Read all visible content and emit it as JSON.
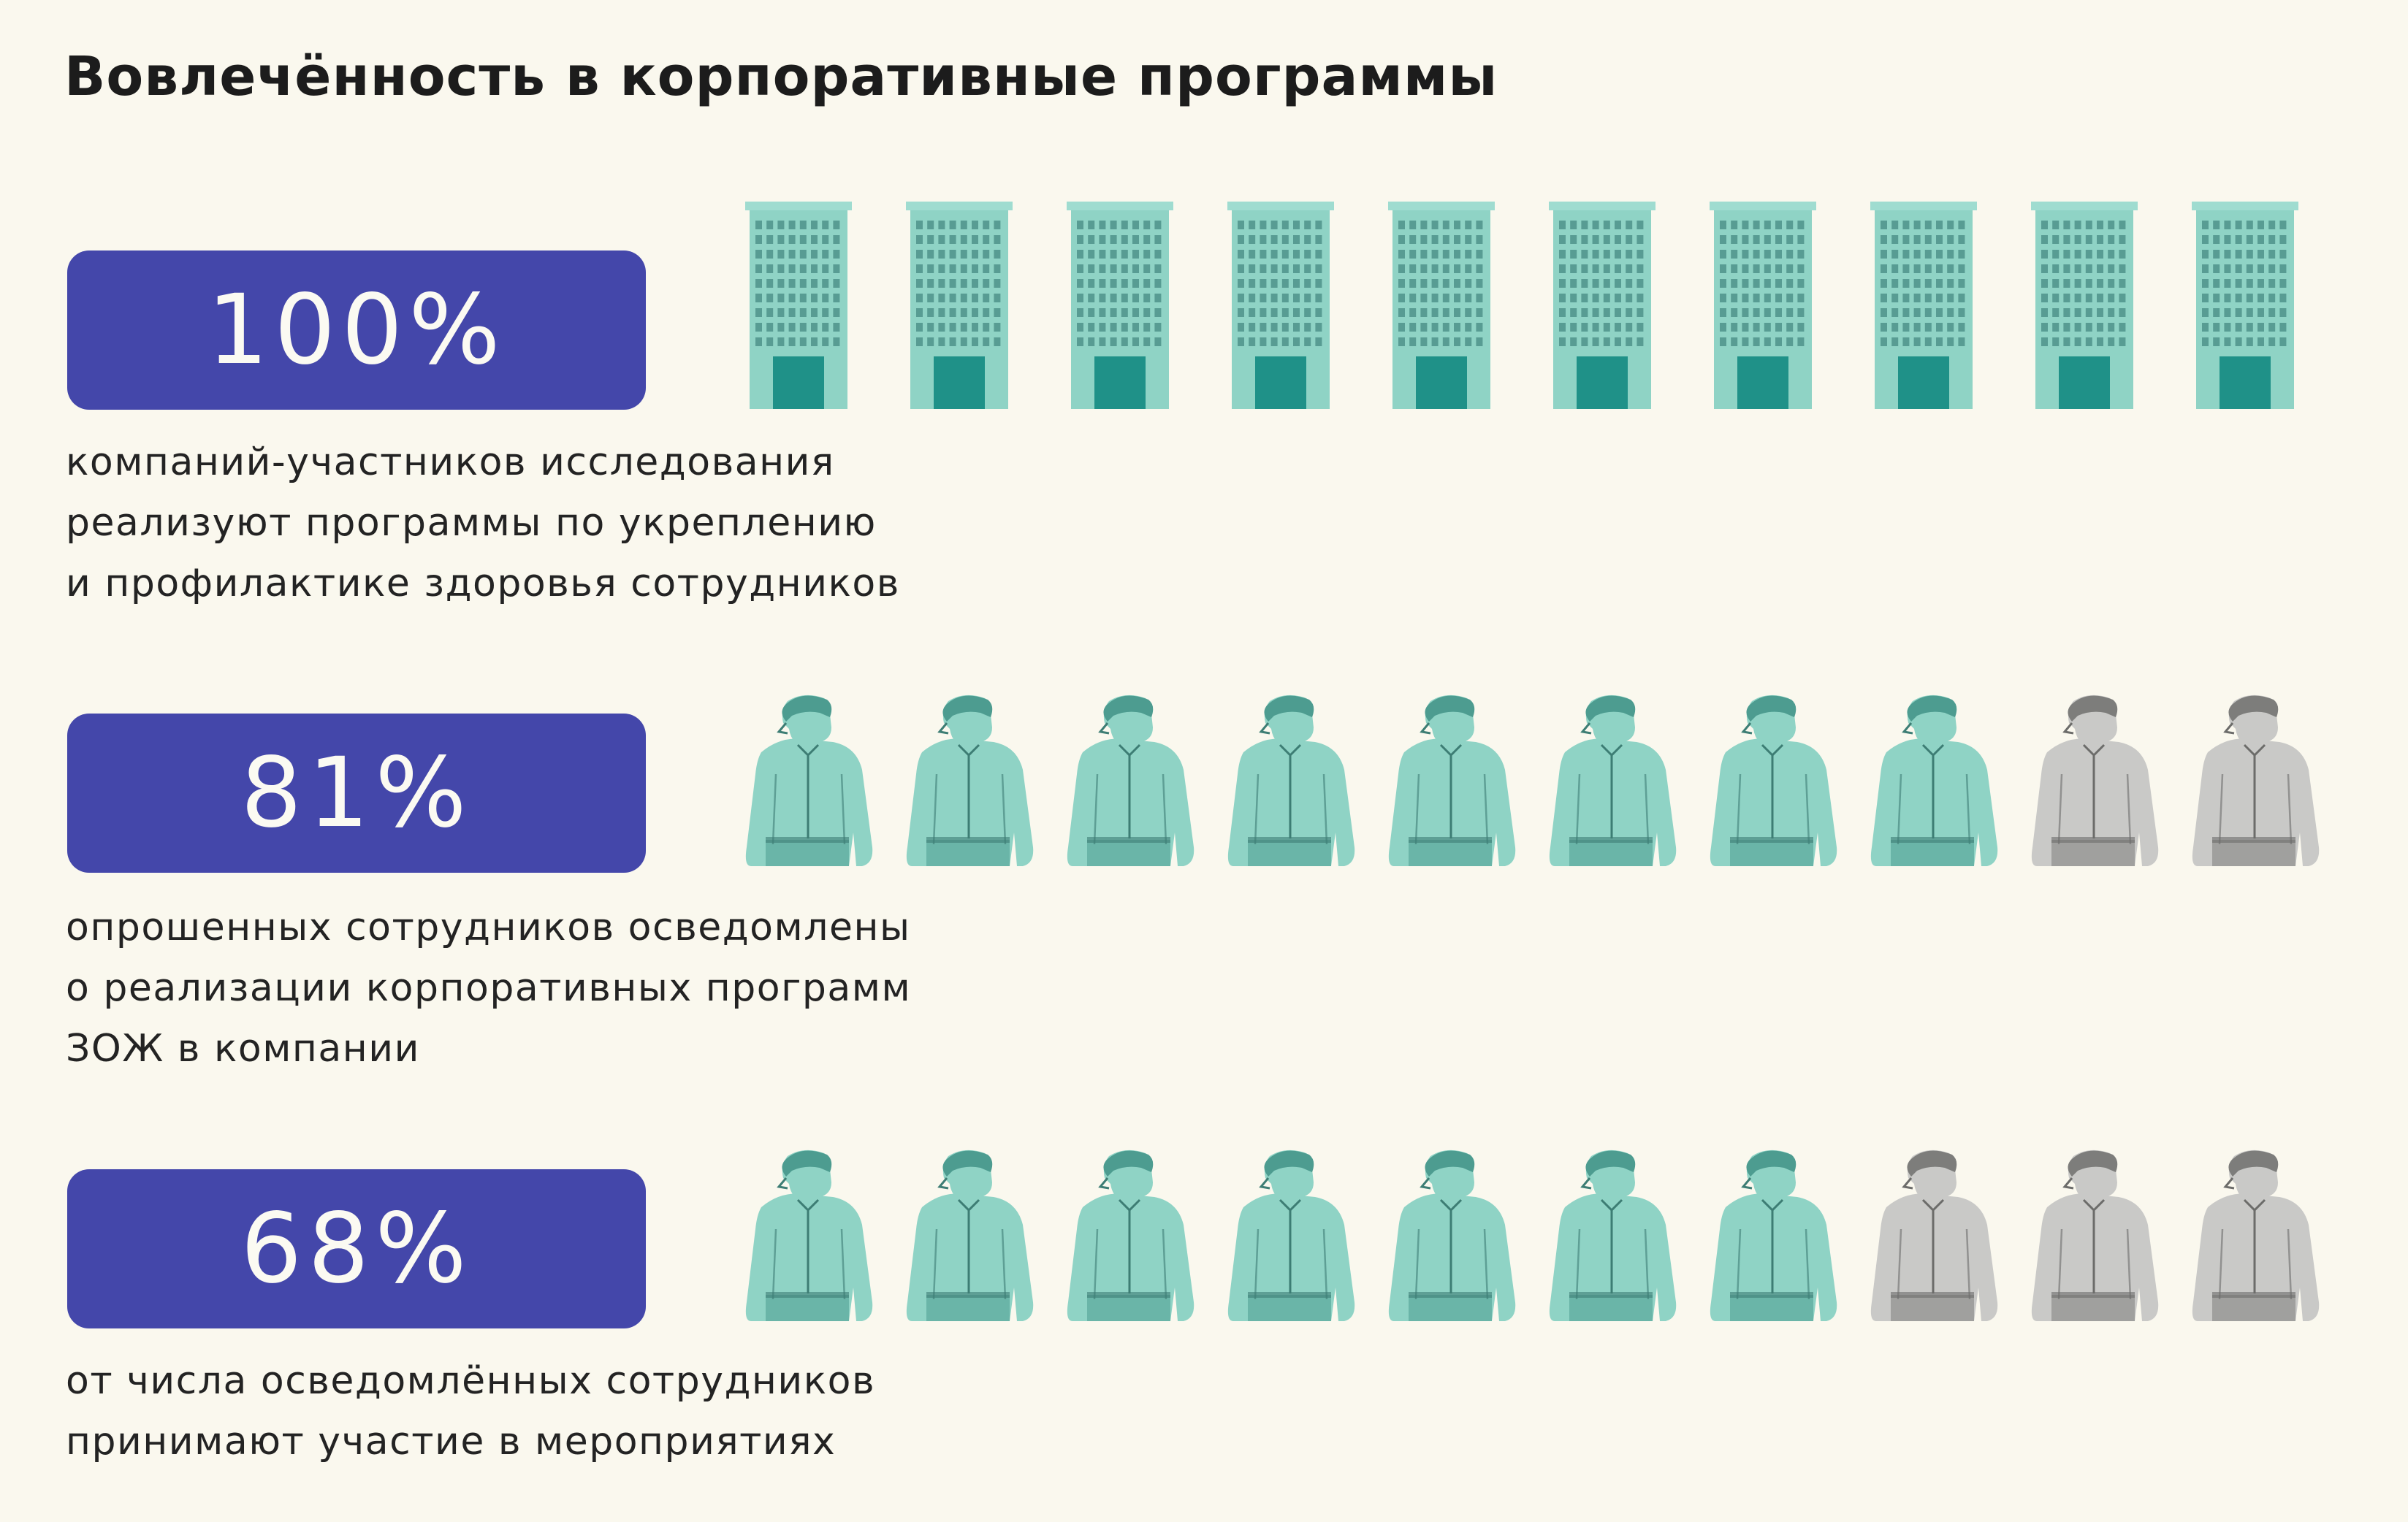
{
  "title": "Вовлечённость в корпоративные программы",
  "colors": {
    "background": "#faf8ee",
    "pill": "#4447aa",
    "pill_text": "#fbfaf2",
    "teal_light": "#8fd3c5",
    "teal_dark": "#1f9188",
    "grey_light": "#c9c9c7",
    "grey_dark": "#7d7d7b"
  },
  "chart_data": [
    {
      "type": "pictogram",
      "icon": "office-building-icon",
      "total_icons": 10,
      "filled_icons": 10,
      "value": 100,
      "value_label": "100%",
      "caption": [
        "компаний-участников исследования",
        "реализуют программы по укреплению",
        "и профилактике здоровья сотрудников"
      ]
    },
    {
      "type": "pictogram",
      "icon": "employee-icon",
      "total_icons": 10,
      "filled_icons": 8,
      "value": 81,
      "value_label": "81%",
      "caption": [
        "опрошенных сотрудников осведомлены",
        "о реализации корпоративных программ",
        "ЗОЖ в компании"
      ]
    },
    {
      "type": "pictogram",
      "icon": "employee-icon",
      "total_icons": 10,
      "filled_icons": 7,
      "value": 68,
      "value_label": "68%",
      "caption": [
        "от числа осведомлённых сотрудников",
        "принимают участие в мероприятиях"
      ]
    }
  ]
}
